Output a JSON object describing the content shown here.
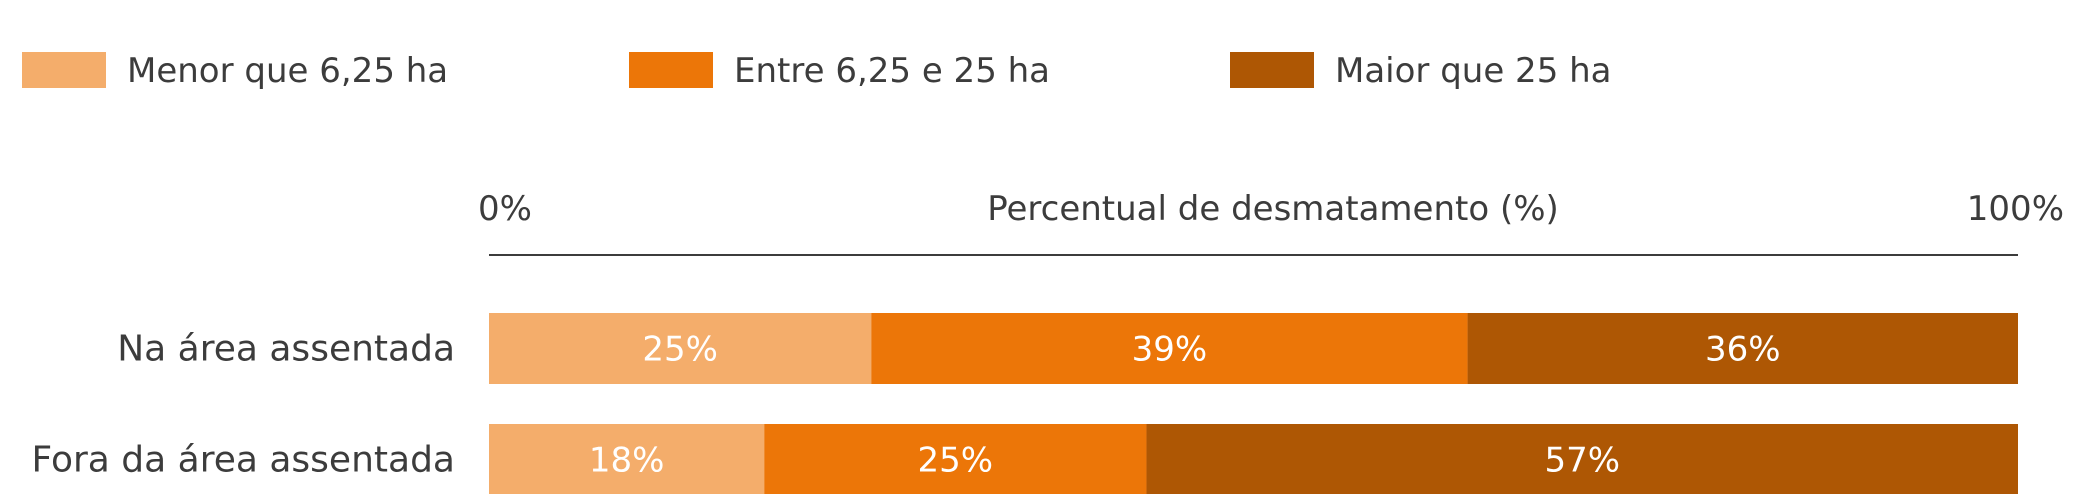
{
  "chart_data": {
    "type": "bar",
    "orientation": "horizontal",
    "stacked": true,
    "xlabel": "Percentual de desmatamento (%)",
    "xlim": [
      0,
      100
    ],
    "tick_labels": [
      "0%",
      "100%"
    ],
    "legend_position": "top",
    "categories": [
      "Na área assentada",
      "Fora da área assentada"
    ],
    "series": [
      {
        "name": "Menor que 6,25 ha",
        "color": "#f4ad6b",
        "values": [
          25,
          18
        ],
        "labels": [
          "25%",
          "18%"
        ]
      },
      {
        "name": "Entre 6,25 e 25 ha",
        "color": "#ec7608",
        "values": [
          39,
          25
        ],
        "labels": [
          "39%",
          "25%"
        ]
      },
      {
        "name": "Maior que 25 ha",
        "color": "#ae5704",
        "values": [
          36,
          57
        ],
        "labels": [
          "36%",
          "57%"
        ]
      }
    ]
  }
}
